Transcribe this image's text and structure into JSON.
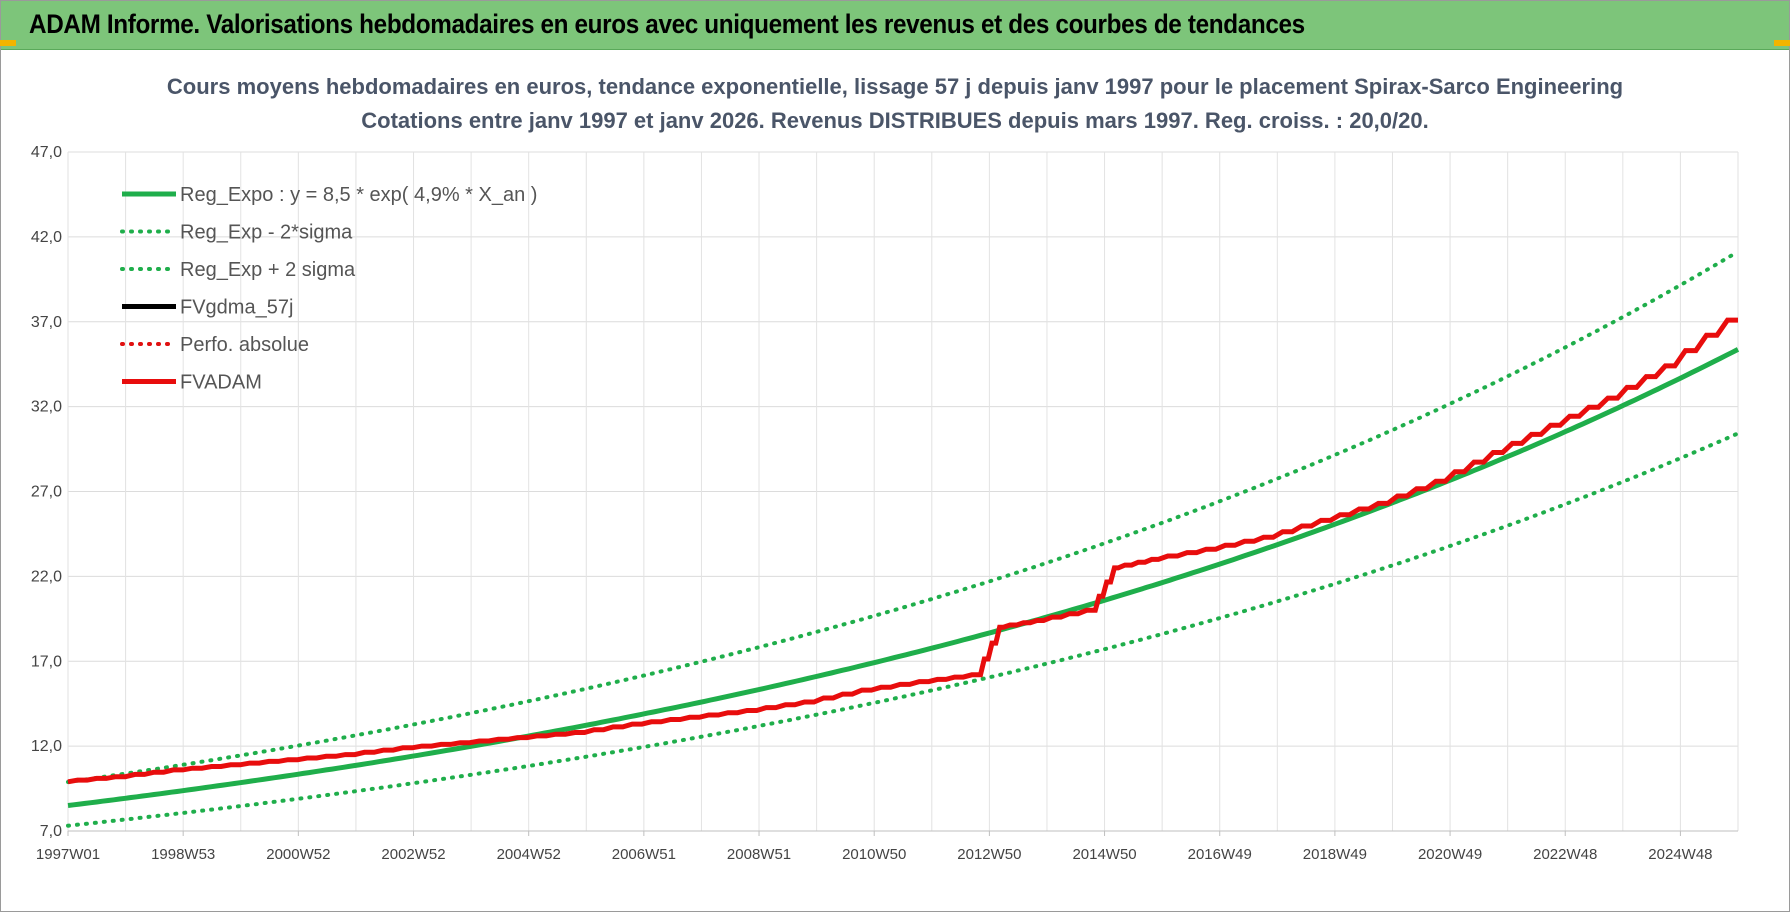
{
  "banner": {
    "title": "ADAM Informe. Valorisations hebdomadaires en euros avec uniquement les revenus et des courbes de tendances"
  },
  "chart_data": {
    "type": "line",
    "title": "Cours moyens hebdomadaires en euros, tendance exponentielle, lissage 57 j depuis janv 1997 pour le placement Spirax-Sarco Engineering",
    "subtitle": "Cotations entre janv 1997 et janv 2026. Revenus DISTRIBUES depuis mars 1997. Reg. croiss. : 20,0/20.",
    "xlabel": "",
    "ylabel": "",
    "x_range": [
      1997.0,
      2026.1
    ],
    "ylim": [
      7,
      47
    ],
    "grid": true,
    "legend_position": "top-left",
    "y_tick_labels": [
      "7,0",
      "12,0",
      "17,0",
      "22,0",
      "27,0",
      "32,0",
      "37,0",
      "42,0",
      "47,0"
    ],
    "x_tick_labels": [
      "1997W01",
      "1998W53",
      "2000W52",
      "2002W52",
      "2004W52",
      "2006W51",
      "2008W51",
      "2010W50",
      "2012W50",
      "2014W50",
      "2016W49",
      "2018W49",
      "2020W49",
      "2022W48",
      "2024W48"
    ],
    "regression": {
      "a": 8.5,
      "rate": 0.049,
      "sigma_factor": 0.86
    },
    "series": [
      {
        "name": "Reg_Expo : y = 8,5 * exp( 4,9% *  X_an )",
        "color": "#1fae4b",
        "style": "solid",
        "key": "reg",
        "x": [],
        "values": []
      },
      {
        "name": "Reg_Exp - 2*sigma",
        "color": "#1fae4b",
        "style": "dotted",
        "key": "low",
        "x": [],
        "values": []
      },
      {
        "name": "Reg_Exp + 2 sigma",
        "color": "#1fae4b",
        "style": "dotted",
        "key": "high",
        "x": [],
        "values": []
      },
      {
        "name": "FVgdma_57j",
        "color": "#000000",
        "style": "solid",
        "key": "fvgdma",
        "x": [
          1997.0,
          1998.0,
          1999.0,
          2000.0,
          2001.0,
          2002.0,
          2003.0,
          2004.0,
          2005.0,
          2006.0,
          2007.0,
          2008.0,
          2009.0,
          2010.0,
          2011.0,
          2012.0,
          2012.9,
          2013.3,
          2014.0,
          2014.9,
          2015.3,
          2016.0,
          2017.0,
          2018.0,
          2019.0,
          2020.0,
          2021.0,
          2022.0,
          2023.0,
          2024.0,
          2025.0,
          2026.1
        ],
        "values": [
          9.9,
          10.2,
          10.6,
          10.9,
          11.2,
          11.5,
          11.9,
          12.2,
          12.5,
          12.8,
          13.3,
          13.7,
          14.1,
          14.6,
          15.3,
          15.8,
          16.2,
          19.0,
          19.4,
          20.0,
          22.5,
          23.0,
          23.6,
          24.3,
          25.3,
          26.3,
          27.6,
          29.3,
          30.9,
          32.5,
          34.4,
          37.1
        ]
      },
      {
        "name": "Perfo. absolue",
        "color": "#e01010",
        "style": "dotted",
        "key": "perfo",
        "x": [],
        "values": []
      },
      {
        "name": "FVADAM",
        "color": "#e80d0d",
        "style": "solid",
        "key": "fvadam",
        "x": [
          1997.0,
          1998.0,
          1999.0,
          2000.0,
          2001.0,
          2002.0,
          2003.0,
          2004.0,
          2005.0,
          2006.0,
          2007.0,
          2008.0,
          2009.0,
          2010.0,
          2011.0,
          2012.0,
          2012.9,
          2013.3,
          2014.0,
          2014.9,
          2015.3,
          2016.0,
          2017.0,
          2018.0,
          2019.0,
          2020.0,
          2021.0,
          2022.0,
          2023.0,
          2024.0,
          2025.0,
          2026.1
        ],
        "values": [
          9.9,
          10.2,
          10.6,
          10.9,
          11.2,
          11.5,
          11.9,
          12.2,
          12.5,
          12.8,
          13.3,
          13.7,
          14.1,
          14.6,
          15.3,
          15.8,
          16.2,
          19.0,
          19.4,
          20.0,
          22.5,
          23.0,
          23.6,
          24.3,
          25.3,
          26.3,
          27.6,
          29.3,
          30.9,
          32.5,
          34.4,
          37.1
        ]
      }
    ]
  }
}
